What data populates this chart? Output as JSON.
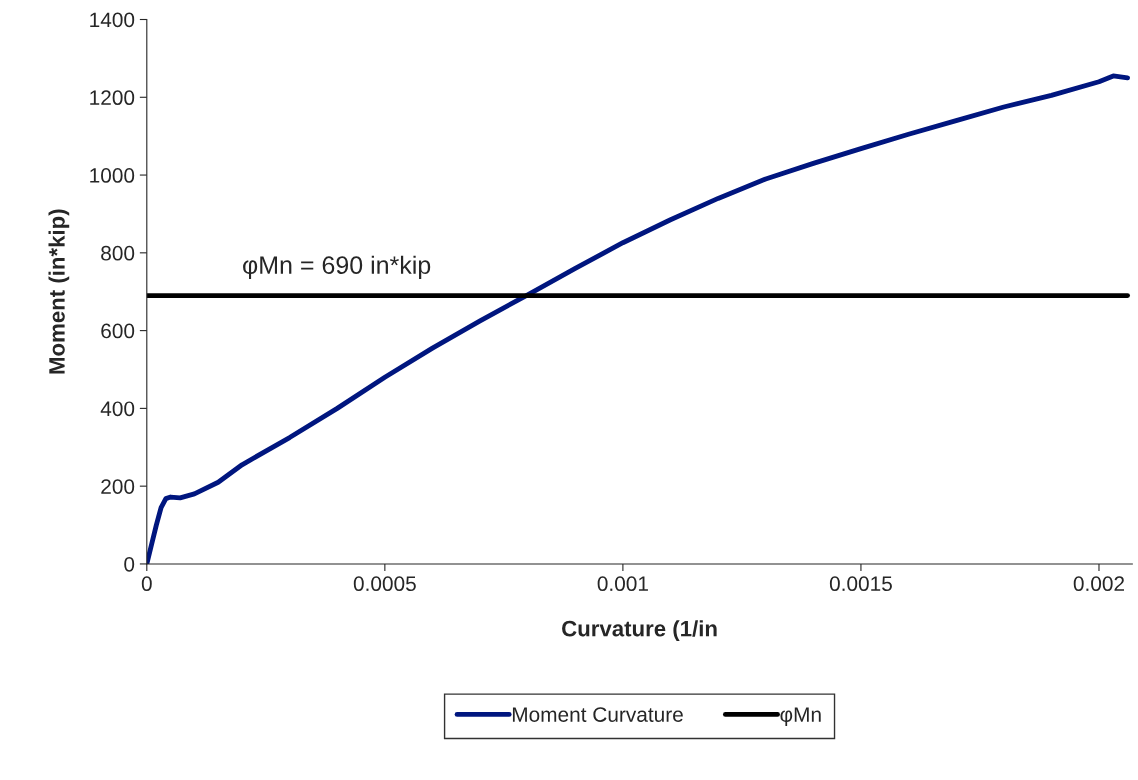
{
  "chart_data": {
    "type": "line",
    "xlabel": "Curvature (1/in",
    "ylabel": "Moment (in*kip)",
    "xlim": [
      0,
      0.00207
    ],
    "xticks": [
      0,
      0.0005,
      0.001,
      0.0015,
      0.002
    ],
    "ylim": [
      0,
      1400
    ],
    "yticks": [
      0,
      200,
      400,
      600,
      800,
      1000,
      1200,
      1400
    ],
    "grid": false,
    "legend": "bottom",
    "marker": "none",
    "line_style": "solid",
    "annotations": [
      {
        "text": "φMn = 690 in*kip",
        "x": 0.0002,
        "y": 690
      }
    ],
    "series": [
      {
        "name": "Moment Curvature",
        "color": "#00167f",
        "x": [
          0,
          1e-05,
          2e-05,
          3e-05,
          4e-05,
          5e-05,
          7e-05,
          0.0001,
          0.00015,
          0.0002,
          0.0003,
          0.0004,
          0.0005,
          0.0006,
          0.0007,
          0.0008,
          0.0009,
          0.001,
          0.0011,
          0.0012,
          0.0013,
          0.0014,
          0.0015,
          0.0016,
          0.0017,
          0.0018,
          0.0019,
          0.002,
          0.00203,
          0.00206
        ],
        "values": [
          0,
          50,
          100,
          145,
          168,
          172,
          170,
          180,
          210,
          255,
          325,
          400,
          480,
          555,
          625,
          692,
          760,
          826,
          885,
          940,
          990,
          1030,
          1068,
          1105,
          1140,
          1175,
          1205,
          1240,
          1255,
          1250
        ]
      },
      {
        "name": "φMn",
        "color": "#000000",
        "x": [
          0,
          0.00206
        ],
        "values": [
          690,
          690
        ]
      }
    ]
  }
}
